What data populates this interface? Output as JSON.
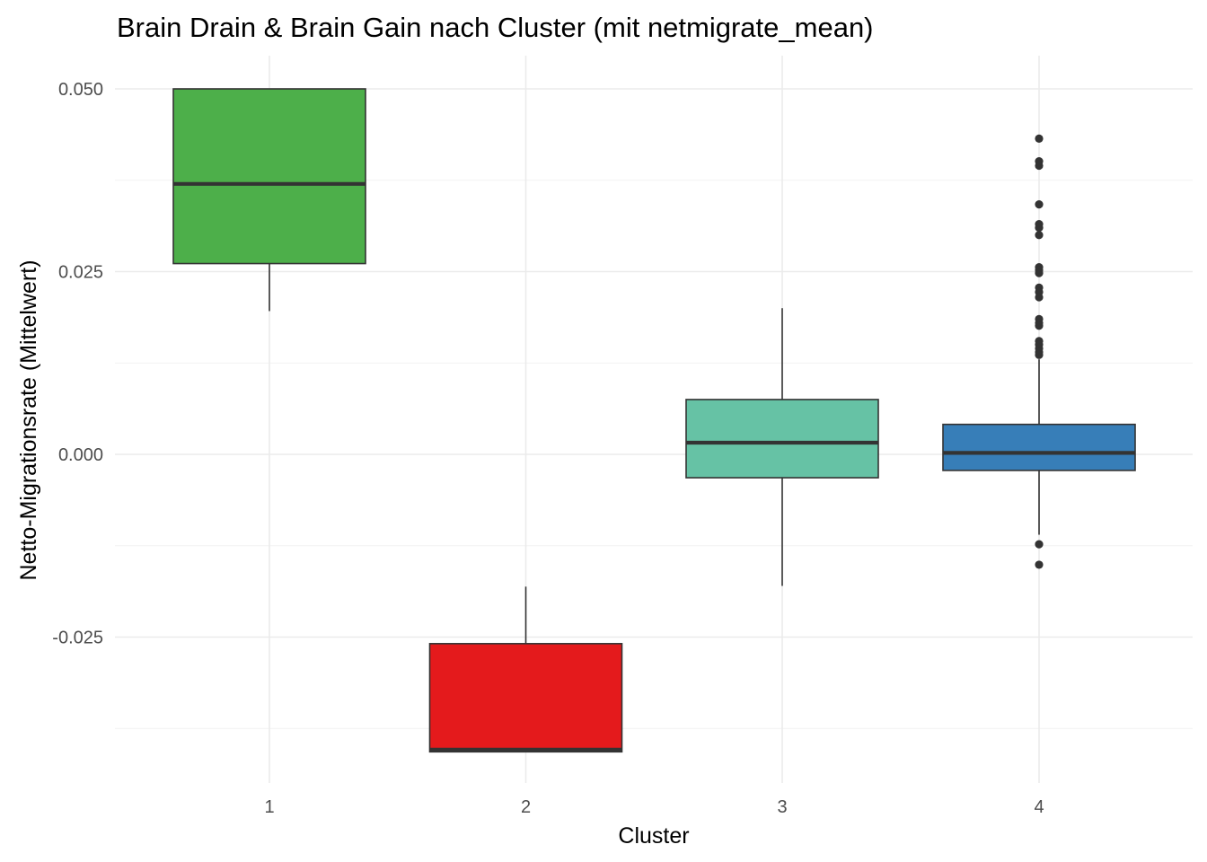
{
  "chart_data": {
    "type": "boxplot",
    "title": "Brain Drain & Brain Gain nach Cluster (mit netmigrate_mean)",
    "xlabel": "Cluster",
    "ylabel": "Netto-Migrationsrate (Mittelwert)",
    "ylim": [
      -0.0445,
      0.0545
    ],
    "y_ticks": [
      -0.025,
      0.0,
      0.025,
      0.05
    ],
    "y_tick_labels": [
      "-0.025",
      "0.000",
      "0.025",
      "0.050"
    ],
    "grid": true,
    "legend": "none",
    "categories": [
      "1",
      "2",
      "3",
      "4"
    ],
    "boxes": [
      {
        "category": "1",
        "color": "#4daf4a",
        "lower_whisker": 0.0196,
        "q1": 0.0261,
        "median": 0.037,
        "q3": 0.05,
        "upper_whisker": 0.05,
        "outliers": []
      },
      {
        "category": "2",
        "color": "#e41a1c",
        "lower_whisker": -0.0407,
        "q1": -0.0407,
        "median": -0.0404,
        "q3": -0.0259,
        "upper_whisker": -0.0181,
        "outliers": []
      },
      {
        "category": "3",
        "color": "#66c2a5",
        "lower_whisker": -0.018,
        "q1": -0.0032,
        "median": 0.0016,
        "q3": 0.0075,
        "upper_whisker": 0.02,
        "outliers": []
      },
      {
        "category": "4",
        "color": "#377eb8",
        "lower_whisker": -0.011,
        "q1": -0.0022,
        "median": 0.0002,
        "q3": 0.0041,
        "upper_whisker": 0.013,
        "outliers": [
          0.0432,
          0.0401,
          0.0395,
          0.0342,
          0.0315,
          0.031,
          0.03,
          0.0256,
          0.0252,
          0.0248,
          0.0228,
          0.0222,
          0.0215,
          0.0185,
          0.018,
          0.0176,
          0.0155,
          0.015,
          0.0145,
          0.014,
          0.0136,
          -0.0123,
          -0.0151
        ]
      }
    ]
  }
}
